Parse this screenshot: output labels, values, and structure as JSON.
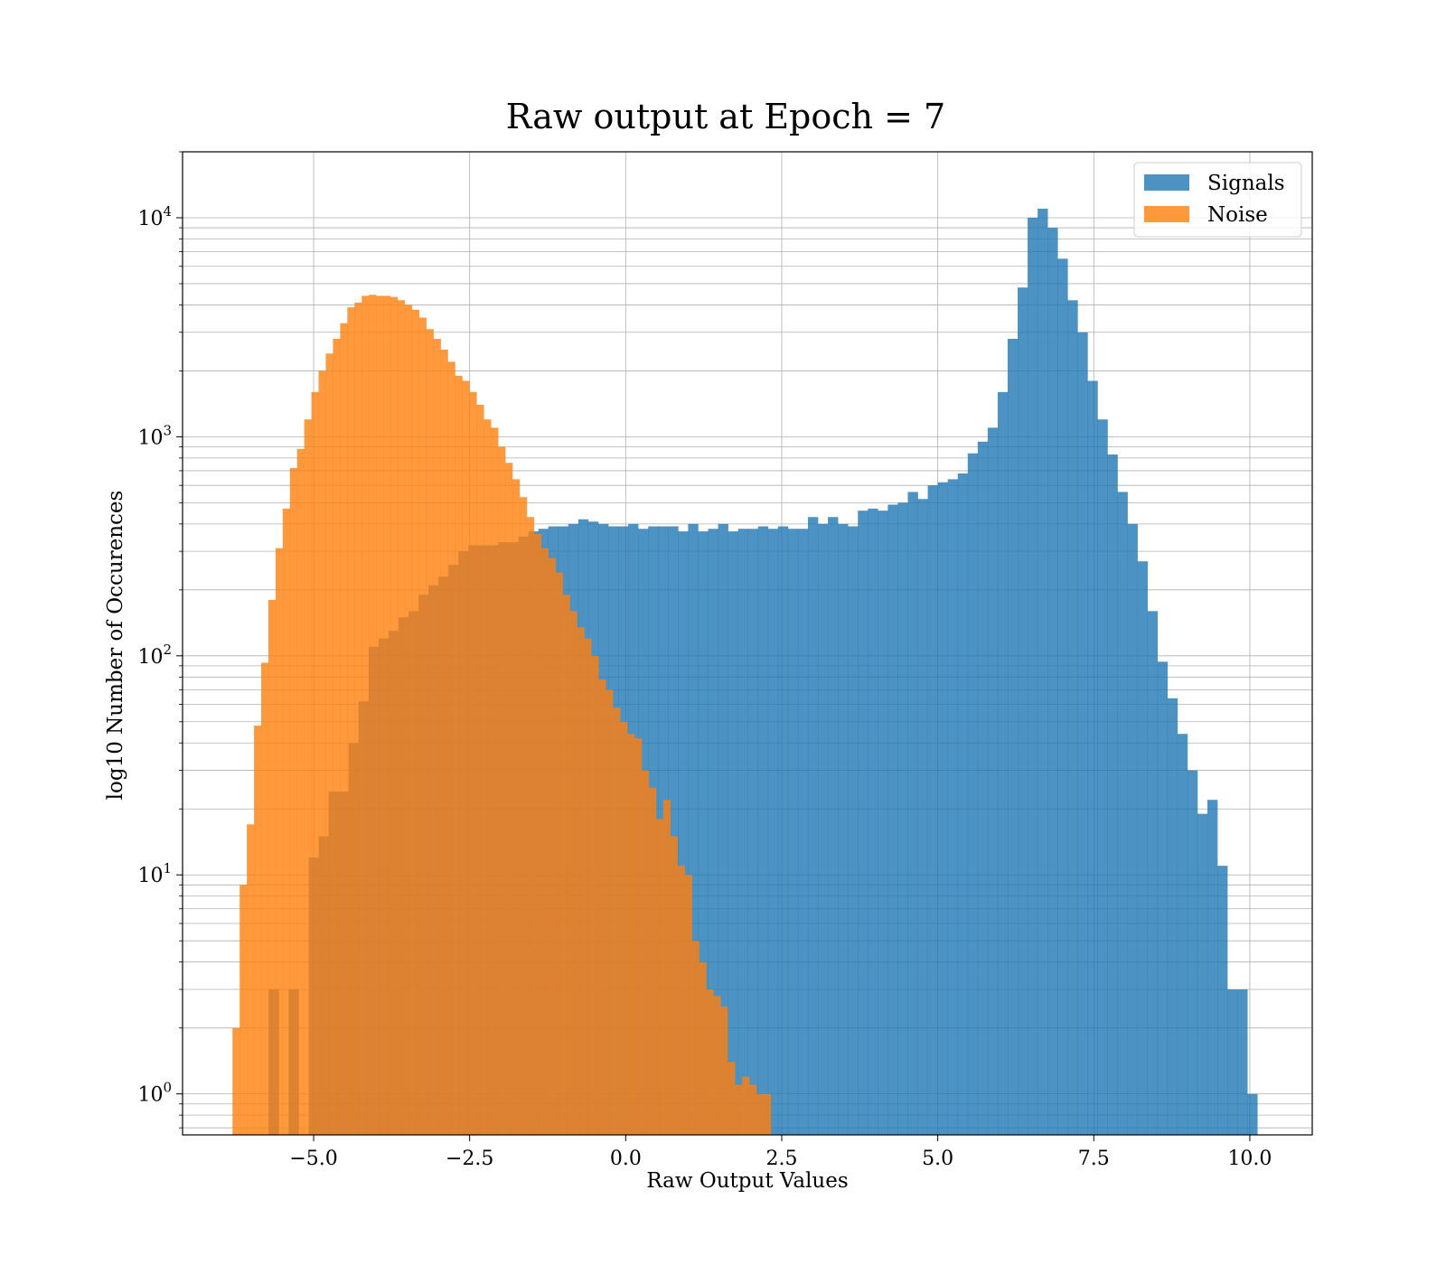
{
  "chart_data": {
    "type": "bar",
    "title": "Raw output at Epoch = 7",
    "xlabel": "Raw Output Values",
    "ylabel": "log10 Number of Occurences",
    "xlim": [
      -7.1,
      11.0
    ],
    "ylim": [
      0.65,
      20000
    ],
    "yscale": "log",
    "grid": true,
    "legend_position": "top-right",
    "x_ticks": [
      {
        "value": -5.0,
        "label": "−5.0"
      },
      {
        "value": -2.5,
        "label": "−2.5"
      },
      {
        "value": 0.0,
        "label": "0.0"
      },
      {
        "value": 2.5,
        "label": "2.5"
      },
      {
        "value": 5.0,
        "label": "5.0"
      },
      {
        "value": 7.5,
        "label": "7.5"
      },
      {
        "value": 10.0,
        "label": "10.0"
      }
    ],
    "y_ticks": [
      {
        "value": 1,
        "base": "10",
        "exp": "0"
      },
      {
        "value": 10,
        "base": "10",
        "exp": "1"
      },
      {
        "value": 100,
        "base": "10",
        "exp": "2"
      },
      {
        "value": 1000,
        "base": "10",
        "exp": "3"
      },
      {
        "value": 10000,
        "base": "10",
        "exp": "4"
      }
    ],
    "series": [
      {
        "name": "Signals",
        "color": "#1f77b4",
        "opacity": 0.8,
        "bin_start": -5.72,
        "bin_width": 0.16,
        "values": [
          3,
          0,
          3,
          0,
          12,
          15,
          24,
          24,
          40,
          62,
          110,
          120,
          130,
          150,
          160,
          190,
          210,
          230,
          260,
          300,
          320,
          320,
          320,
          330,
          330,
          350,
          370,
          380,
          390,
          390,
          400,
          420,
          410,
          400,
          390,
          390,
          400,
          380,
          390,
          390,
          390,
          370,
          400,
          370,
          380,
          400,
          370,
          380,
          380,
          390,
          380,
          390,
          380,
          380,
          430,
          400,
          430,
          400,
          390,
          460,
          470,
          460,
          490,
          500,
          560,
          520,
          600,
          620,
          640,
          680,
          840,
          950,
          1100,
          1600,
          2800,
          4800,
          10000,
          11000,
          9000,
          6500,
          4200,
          3000,
          1800,
          1200,
          830,
          560,
          400,
          270,
          160,
          94,
          64,
          44,
          30,
          19,
          22,
          11,
          3,
          3,
          1
        ]
      },
      {
        "name": "Noise",
        "color": "#ff7f0e",
        "opacity": 0.8,
        "bin_start": -6.3,
        "bin_width": 0.115,
        "values": [
          2,
          9,
          17,
          48,
          93,
          180,
          310,
          470,
          720,
          880,
          1200,
          1600,
          2000,
          2400,
          2800,
          3300,
          3900,
          4100,
          4400,
          4450,
          4400,
          4400,
          4350,
          4200,
          4000,
          3800,
          3500,
          3100,
          2800,
          2500,
          2200,
          1900,
          1800,
          1600,
          1400,
          1200,
          1100,
          900,
          760,
          640,
          530,
          430,
          360,
          310,
          280,
          240,
          190,
          160,
          135,
          120,
          100,
          78,
          70,
          58,
          50,
          44,
          42,
          30,
          25,
          18,
          22,
          15,
          11,
          10,
          5,
          4,
          3,
          2.8,
          2.5,
          1.4,
          1.1,
          1.2,
          1.1,
          1,
          1
        ]
      }
    ]
  }
}
